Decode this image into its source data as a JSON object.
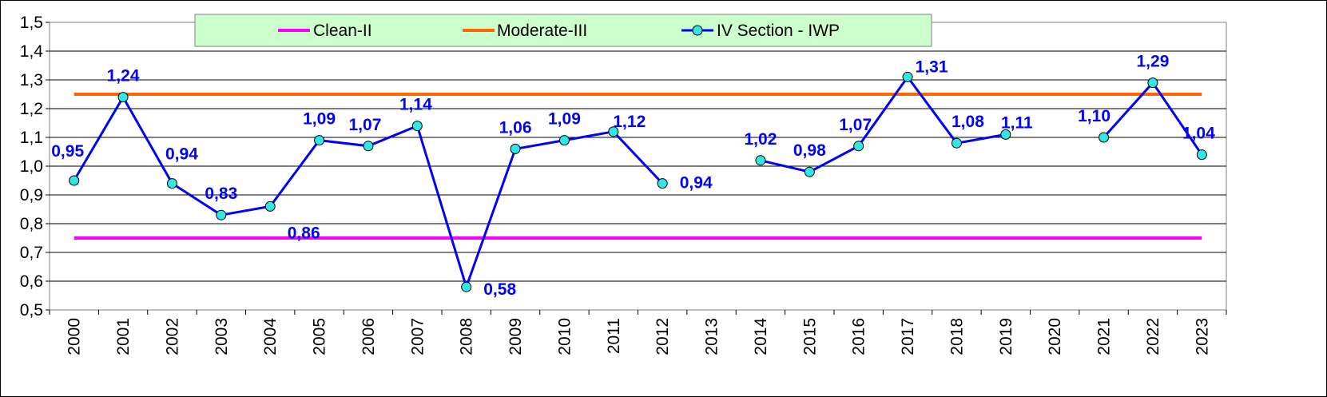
{
  "chart_data": {
    "type": "line",
    "x": [
      "2000",
      "2001",
      "2002",
      "2003",
      "2004",
      "2005",
      "2006",
      "2007",
      "2008",
      "2009",
      "2010",
      "2011",
      "2012",
      "2013",
      "2014",
      "2015",
      "2016",
      "2017",
      "2018",
      "2019",
      "2020",
      "2021",
      "2022",
      "2023"
    ],
    "ylim": [
      0.5,
      1.5
    ],
    "yticks": [
      "0,5",
      "0,6",
      "0,7",
      "0,8",
      "0,9",
      "1,0",
      "1,1",
      "1,2",
      "1,3",
      "1,4",
      "1,5"
    ],
    "grid": true,
    "legend_position": "top",
    "series": [
      {
        "name": "Clean-II",
        "color": "#ff00ff",
        "style": "line",
        "values": [
          0.75,
          0.75,
          0.75,
          0.75,
          0.75,
          0.75,
          0.75,
          0.75,
          0.75,
          0.75,
          0.75,
          0.75,
          0.75,
          0.75,
          0.75,
          0.75,
          0.75,
          0.75,
          0.75,
          0.75,
          0.75,
          0.75,
          0.75,
          0.75
        ]
      },
      {
        "name": "Moderate-III",
        "color": "#ff6600",
        "style": "line",
        "values": [
          1.25,
          1.25,
          1.25,
          1.25,
          1.25,
          1.25,
          1.25,
          1.25,
          1.25,
          1.25,
          1.25,
          1.25,
          1.25,
          1.25,
          1.25,
          1.25,
          1.25,
          1.25,
          1.25,
          1.25,
          1.25,
          1.25,
          1.25,
          1.25
        ]
      },
      {
        "name": "IV Section - IWP",
        "color": "#0000ff",
        "marker_color": "#33e6e6",
        "style": "line-marker",
        "values": [
          0.95,
          1.24,
          0.94,
          0.83,
          0.86,
          1.09,
          1.07,
          1.14,
          0.58,
          1.06,
          1.09,
          1.12,
          0.94,
          null,
          1.02,
          0.98,
          1.07,
          1.31,
          1.08,
          1.11,
          null,
          1.1,
          1.29,
          1.04
        ],
        "labels": [
          "0,95",
          "1,24",
          "0,94",
          "0,83",
          "0,86",
          "1,09",
          "1,07",
          "1,14",
          "0,58",
          "1,06",
          "1,09",
          "1,12",
          "0,94",
          null,
          "1,02",
          "0,98",
          "1,07",
          "1,31",
          "1,08",
          "1,11",
          null,
          "1,10",
          "1,29",
          "1,04"
        ]
      }
    ]
  }
}
